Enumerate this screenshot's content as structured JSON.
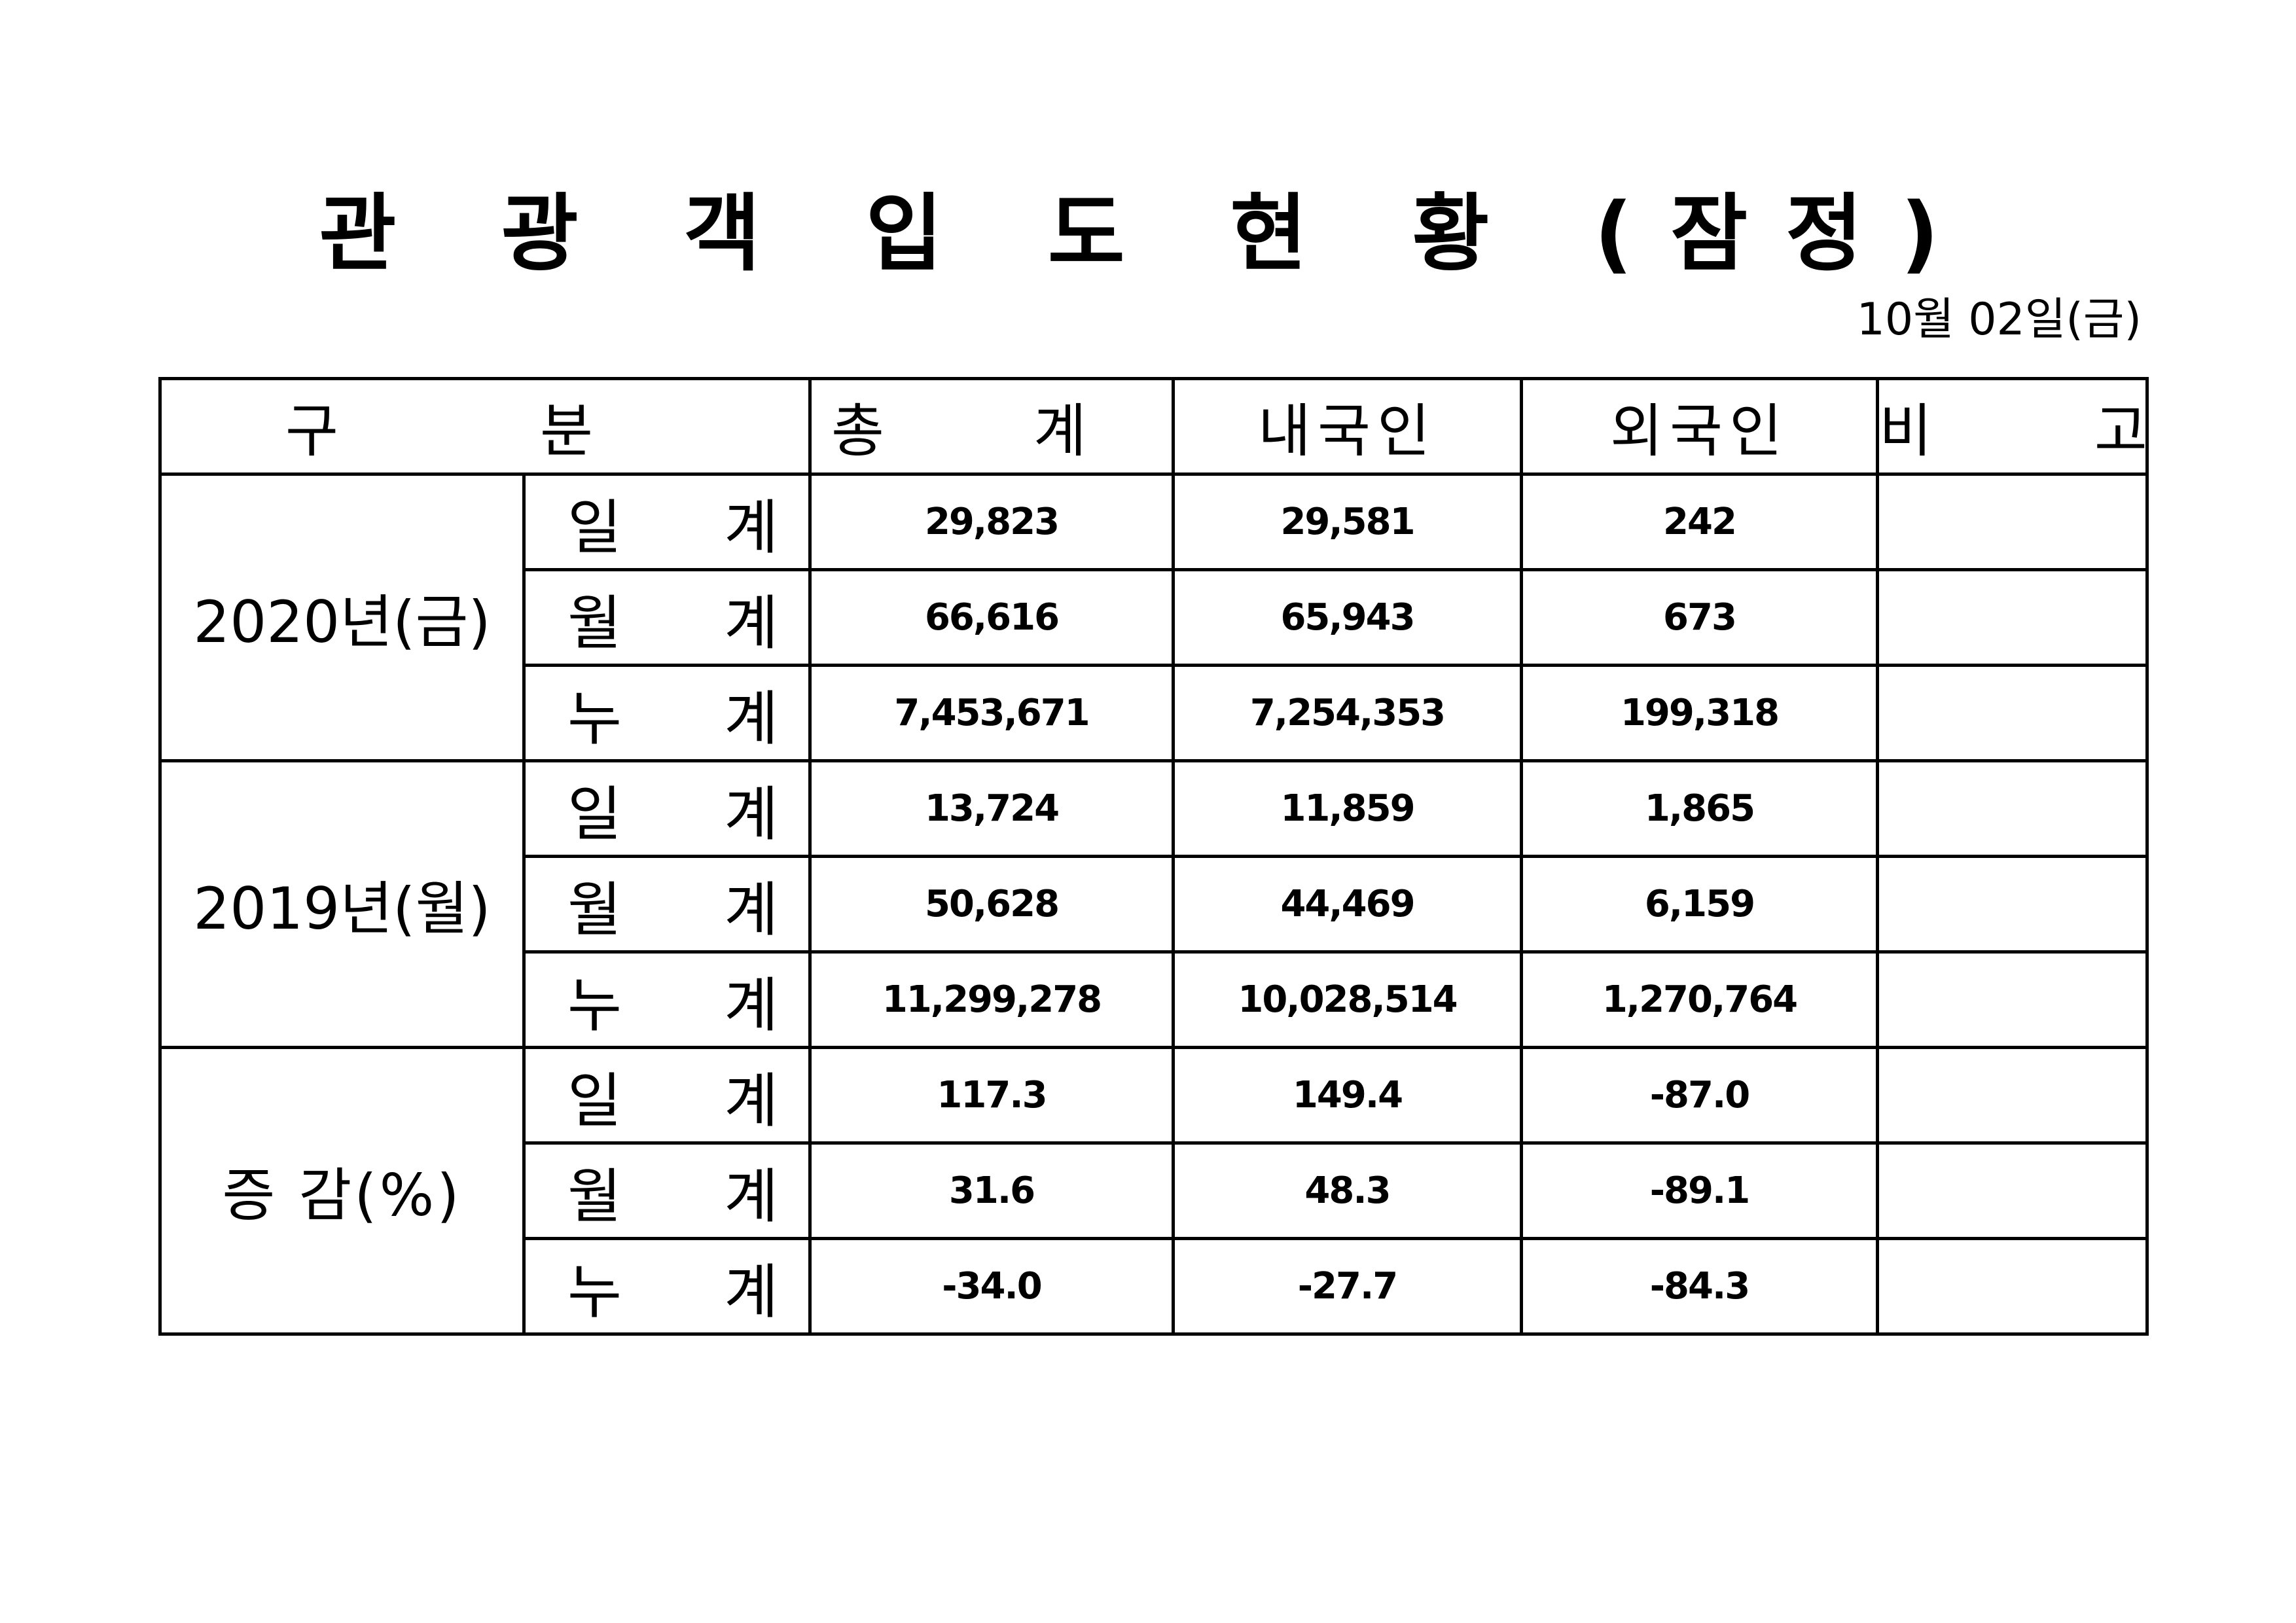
{
  "title": "관 광 객 입 도 현 황 (잠정)",
  "date": "10월 02일(금)",
  "headers": {
    "category": "구 분",
    "total": "총 계",
    "domestic": "내국인",
    "foreign": "외국인",
    "note": "비 고"
  },
  "groups": [
    {
      "label": "2020년(금)",
      "rows": [
        {
          "label": "일 계",
          "total": "29,823",
          "domestic": "29,581",
          "foreign": "242",
          "note": ""
        },
        {
          "label": "월 계",
          "total": "66,616",
          "domestic": "65,943",
          "foreign": "673",
          "note": ""
        },
        {
          "label": "누 계",
          "total": "7,453,671",
          "domestic": "7,254,353",
          "foreign": "199,318",
          "note": ""
        }
      ]
    },
    {
      "label": "2019년(월)",
      "rows": [
        {
          "label": "일 계",
          "total": "13,724",
          "domestic": "11,859",
          "foreign": "1,865",
          "note": ""
        },
        {
          "label": "월 계",
          "total": "50,628",
          "domestic": "44,469",
          "foreign": "6,159",
          "note": ""
        },
        {
          "label": "누 계",
          "total": "11,299,278",
          "domestic": "10,028,514",
          "foreign": "1,270,764",
          "note": ""
        }
      ]
    },
    {
      "label": "증 감(%)",
      "rows": [
        {
          "label": "일 계",
          "total": "117.3",
          "domestic": "149.4",
          "foreign": "-87.0",
          "note": ""
        },
        {
          "label": "월 계",
          "total": "31.6",
          "domestic": "48.3",
          "foreign": "-89.1",
          "note": ""
        },
        {
          "label": "누 계",
          "total": "-34.0",
          "domestic": "-27.7",
          "foreign": "-84.3",
          "note": ""
        }
      ]
    }
  ]
}
